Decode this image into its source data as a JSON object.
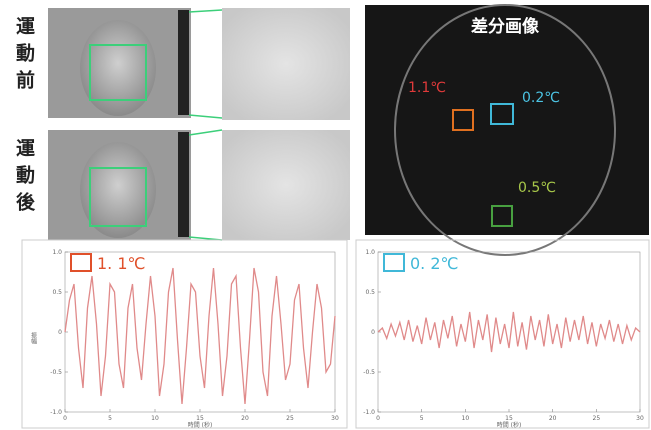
{
  "labels": {
    "before": "運動前",
    "after": "運動後",
    "diff_title": "差分画像",
    "roi_1": "1.1℃",
    "roi_2": "0.2℃",
    "roi_3": "0.5℃"
  },
  "chart_data": [
    {
      "type": "line",
      "xlabel": "時間 (秒)",
      "ylabel": "振幅",
      "x": [
        0,
        0.5,
        1,
        1.5,
        2,
        2.5,
        3,
        3.5,
        4,
        4.5,
        5,
        5.5,
        6,
        6.5,
        7,
        7.5,
        8,
        8.5,
        9,
        9.5,
        10,
        10.5,
        11,
        11.5,
        12,
        12.5,
        13,
        13.5,
        14,
        14.5,
        15,
        15.5,
        16,
        16.5,
        17,
        17.5,
        18,
        18.5,
        19,
        19.5,
        20,
        20.5,
        21,
        21.5,
        22,
        22.5,
        23,
        23.5,
        24,
        24.5,
        25,
        25.5,
        26,
        26.5,
        27,
        27.5,
        28,
        28.5,
        29,
        29.5,
        30
      ],
      "series": [
        {
          "name": "1. 1℃",
          "color": "#e08a8a",
          "legend_color": "#e0502a",
          "values": [
            0,
            0.4,
            0.6,
            -0.2,
            -0.7,
            0.3,
            0.7,
            0.1,
            -0.8,
            -0.3,
            0.6,
            0.5,
            -0.4,
            -0.7,
            0.3,
            0.6,
            -0.2,
            -0.6,
            0.1,
            0.7,
            0.2,
            -0.8,
            -0.4,
            0.5,
            0.8,
            -0.1,
            -0.9,
            -0.2,
            0.6,
            0.5,
            -0.3,
            -0.7,
            0.2,
            0.8,
            0.1,
            -0.8,
            -0.3,
            0.6,
            0.7,
            -0.2,
            -0.9,
            -0.1,
            0.8,
            0.5,
            -0.5,
            -0.8,
            0.2,
            0.7,
            0.1,
            -0.6,
            -0.4,
            0.4,
            0.6,
            -0.2,
            -0.7,
            0,
            0.6,
            0.3,
            -0.5,
            -0.4,
            0.2
          ]
        }
      ],
      "xlim": [
        0,
        30
      ],
      "xticks": [
        0,
        5,
        10,
        15,
        20,
        25,
        30
      ],
      "ylim": [
        -1,
        1
      ],
      "yticks": [
        {
          "value": -1,
          "label": "-1.0"
        },
        -0.5,
        0,
        0.5,
        {
          "value": 1,
          "label": "1.0"
        }
      ]
    },
    {
      "type": "line",
      "xlabel": "時間 (秒)",
      "x": [
        0,
        0.5,
        1,
        1.5,
        2,
        2.5,
        3,
        3.5,
        4,
        4.5,
        5,
        5.5,
        6,
        6.5,
        7,
        7.5,
        8,
        8.5,
        9,
        9.5,
        10,
        10.5,
        11,
        11.5,
        12,
        12.5,
        13,
        13.5,
        14,
        14.5,
        15,
        15.5,
        16,
        16.5,
        17,
        17.5,
        18,
        18.5,
        19,
        19.5,
        20,
        20.5,
        21,
        21.5,
        22,
        22.5,
        23,
        23.5,
        24,
        24.5,
        25,
        25.5,
        26,
        26.5,
        27,
        27.5,
        28,
        28.5,
        29,
        29.5,
        30
      ],
      "series": [
        {
          "name": "0. 2℃",
          "color": "#e08a8a",
          "legend_color": "#40b8d8",
          "values": [
            0,
            0.05,
            -0.08,
            0.1,
            -0.05,
            0.12,
            -0.1,
            0.15,
            -0.12,
            0.08,
            -0.15,
            0.18,
            -0.1,
            0.12,
            -0.2,
            0.15,
            -0.08,
            0.2,
            -0.18,
            0.1,
            -0.12,
            0.25,
            -0.2,
            0.15,
            -0.1,
            0.22,
            -0.25,
            0.18,
            -0.15,
            0.1,
            -0.2,
            0.25,
            -0.18,
            0.12,
            -0.22,
            0.2,
            -0.1,
            0.15,
            -0.18,
            0.22,
            -0.15,
            0.1,
            -0.2,
            0.18,
            -0.12,
            0.15,
            -0.1,
            0.2,
            -0.15,
            0.12,
            -0.18,
            0.1,
            -0.08,
            0.15,
            -0.12,
            0.1,
            -0.15,
            0.08,
            -0.1,
            0.05,
            0
          ]
        }
      ],
      "xlim": [
        0,
        30
      ],
      "xticks": [
        0,
        5,
        10,
        15,
        20,
        25,
        30
      ],
      "ylim": [
        -1,
        1
      ],
      "yticks": [
        {
          "value": -1,
          "label": "-1.0"
        },
        -0.5,
        0,
        0.5,
        {
          "value": 1,
          "label": "1.0"
        }
      ]
    }
  ]
}
